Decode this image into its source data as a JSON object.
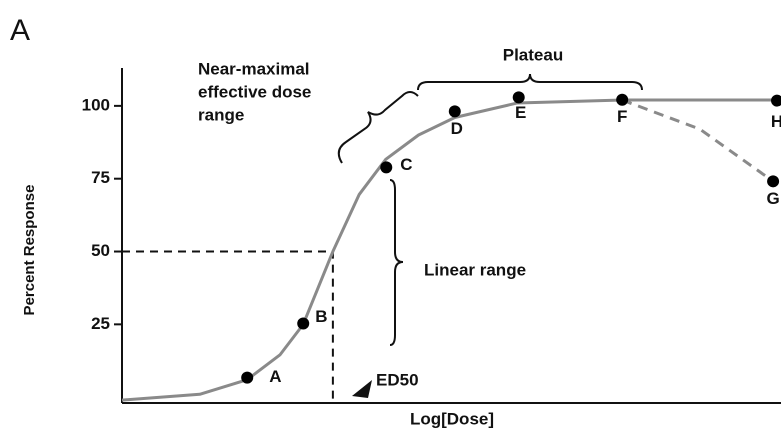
{
  "chart_data": {
    "type": "line",
    "panel": "A",
    "x_label": "Log[Dose]",
    "y_label": "Percent Response",
    "xlim": [
      0,
      100
    ],
    "ylim": [
      -2,
      113
    ],
    "yticks": [
      25,
      50,
      75,
      100
    ],
    "series": [
      {
        "color": "#8a8a8a",
        "dash": false,
        "x": [
          0,
          11.8,
          19,
          24,
          27.5,
          32,
          36,
          40,
          45,
          50.5,
          60,
          76,
          100
        ],
        "values": [
          -1,
          1,
          6,
          14.6,
          25,
          50,
          69.6,
          81.6,
          90,
          96,
          101,
          102,
          102
        ]
      },
      {
        "color": "#8a8a8a",
        "dash": true,
        "x": [
          75.9,
          87.7,
          98.8
        ],
        "values": [
          102,
          92,
          74.1
        ]
      }
    ],
    "points": {
      "color": "#000000",
      "labels": [
        "A",
        "B",
        "C",
        "D",
        "E",
        "F",
        "H",
        "G"
      ],
      "x": [
        19.0,
        27.5,
        40.1,
        50.5,
        60.2,
        75.9,
        99.4,
        98.8
      ],
      "values": [
        6.7,
        25.3,
        78.9,
        98.1,
        102.9,
        102.1,
        101.8,
        74.1
      ]
    },
    "ed50": {
      "label": "ED50",
      "x": 32.0,
      "y": 50
    },
    "annotations": {
      "near_maximal": [
        "Near-maximal",
        "effective dose",
        "range"
      ],
      "plateau": "Plateau",
      "linear": "Linear range"
    }
  }
}
